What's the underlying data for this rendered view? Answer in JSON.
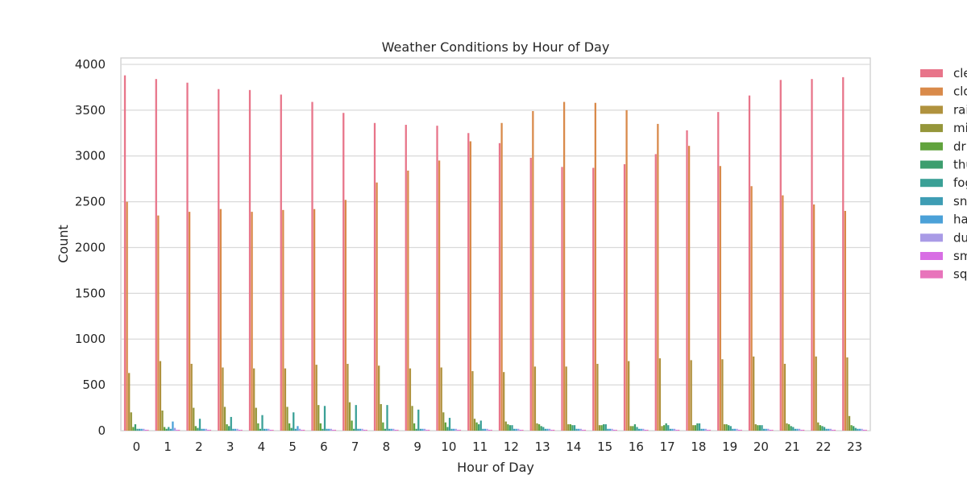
{
  "chart_data": {
    "type": "bar",
    "title": "Weather Conditions by Hour of Day",
    "xlabel": "Hour of Day",
    "ylabel": "Count",
    "ylim": [
      0,
      4070
    ],
    "yticks": [
      0,
      500,
      1000,
      1500,
      2000,
      2500,
      3000,
      3500,
      4000
    ],
    "grid": true,
    "legend_position": "right, outside plot (clipped at page edge)",
    "categories": [
      "0",
      "1",
      "2",
      "3",
      "4",
      "5",
      "6",
      "7",
      "8",
      "9",
      "10",
      "11",
      "12",
      "13",
      "14",
      "15",
      "16",
      "17",
      "18",
      "19",
      "20",
      "21",
      "22",
      "23"
    ],
    "series": [
      {
        "name": "cle",
        "color": "#e8758a",
        "values": [
          3880,
          3840,
          3800,
          3730,
          3720,
          3670,
          3590,
          3470,
          3360,
          3340,
          3330,
          3250,
          3140,
          2980,
          2880,
          2870,
          2910,
          3020,
          3280,
          3480,
          3660,
          3830,
          3840,
          3860
        ]
      },
      {
        "name": "clo",
        "color": "#d98a4a",
        "values": [
          2500,
          2350,
          2390,
          2420,
          2390,
          2410,
          2420,
          2520,
          2710,
          2840,
          2950,
          3160,
          3360,
          3490,
          3590,
          3580,
          3500,
          3350,
          3110,
          2890,
          2670,
          2570,
          2470,
          2400
        ]
      },
      {
        "name": "rai",
        "color": "#b0923e",
        "values": [
          630,
          760,
          730,
          690,
          680,
          680,
          720,
          730,
          710,
          680,
          690,
          650,
          640,
          700,
          700,
          730,
          760,
          790,
          770,
          780,
          810,
          730,
          810,
          800
        ]
      },
      {
        "name": "mi",
        "color": "#95963a",
        "values": [
          200,
          220,
          250,
          260,
          250,
          260,
          280,
          310,
          290,
          270,
          200,
          130,
          100,
          80,
          70,
          60,
          50,
          50,
          60,
          70,
          70,
          80,
          90,
          160
        ]
      },
      {
        "name": "dr",
        "color": "#61a33d",
        "values": [
          40,
          40,
          50,
          70,
          80,
          80,
          80,
          110,
          90,
          80,
          90,
          90,
          70,
          70,
          70,
          60,
          50,
          60,
          60,
          70,
          60,
          70,
          60,
          60
        ]
      },
      {
        "name": "thu",
        "color": "#3d9e6e",
        "values": [
          70,
          20,
          30,
          50,
          20,
          30,
          20,
          20,
          20,
          20,
          40,
          70,
          60,
          50,
          60,
          70,
          70,
          80,
          80,
          60,
          60,
          50,
          50,
          50
        ]
      },
      {
        "name": "fog",
        "color": "#3aa096",
        "values": [
          20,
          40,
          130,
          150,
          170,
          200,
          270,
          280,
          280,
          230,
          140,
          110,
          60,
          40,
          60,
          70,
          40,
          60,
          80,
          50,
          60,
          40,
          40,
          30
        ]
      },
      {
        "name": "sn",
        "color": "#3e9db4",
        "values": [
          20,
          20,
          20,
          20,
          20,
          20,
          20,
          20,
          20,
          20,
          20,
          20,
          20,
          20,
          20,
          20,
          20,
          20,
          20,
          20,
          20,
          20,
          20,
          20
        ]
      },
      {
        "name": "ha",
        "color": "#4ba1d8",
        "values": [
          20,
          100,
          20,
          20,
          20,
          50,
          20,
          20,
          20,
          20,
          20,
          20,
          20,
          20,
          20,
          20,
          20,
          20,
          20,
          20,
          20,
          20,
          20,
          20
        ]
      },
      {
        "name": "du",
        "color": "#a99be6",
        "values": [
          20,
          30,
          20,
          20,
          20,
          20,
          20,
          20,
          20,
          20,
          20,
          20,
          20,
          20,
          20,
          20,
          20,
          20,
          20,
          20,
          20,
          20,
          20,
          20
        ]
      },
      {
        "name": "sm",
        "color": "#d86ee4",
        "values": [
          10,
          10,
          10,
          10,
          10,
          10,
          10,
          10,
          10,
          10,
          10,
          10,
          10,
          10,
          10,
          10,
          10,
          10,
          10,
          10,
          10,
          10,
          10,
          10
        ]
      },
      {
        "name": "sq",
        "color": "#e874bb",
        "values": [
          10,
          10,
          10,
          10,
          10,
          10,
          10,
          10,
          10,
          10,
          10,
          10,
          10,
          10,
          10,
          10,
          10,
          10,
          10,
          10,
          10,
          10,
          10,
          10
        ]
      }
    ]
  }
}
